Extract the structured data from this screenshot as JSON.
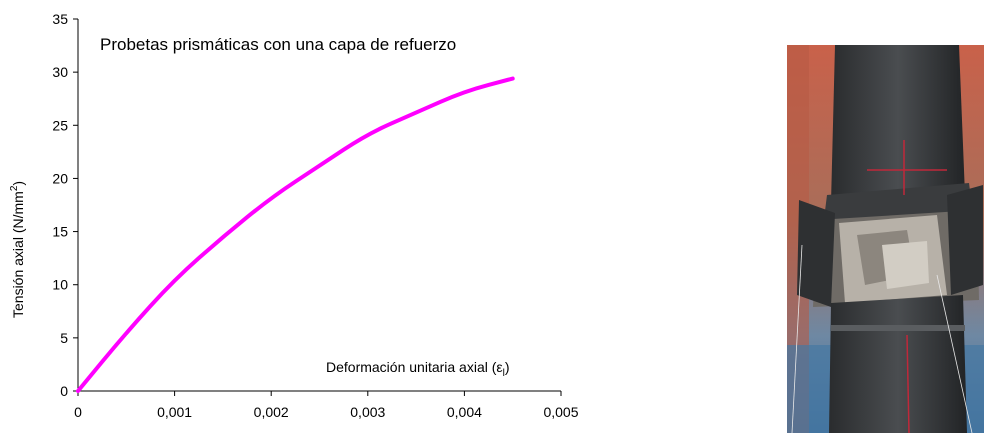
{
  "chart_data": {
    "type": "line",
    "title": "Probetas prismáticas con una capa de refuerzo",
    "xlabel": "Deformación unitaria axial (ε",
    "xlabel_sub": "l",
    "xlabel_close": ")",
    "ylabel": "Tensión axial (N/mm",
    "ylabel_sup": "2",
    "ylabel_close": ")",
    "xlim": [
      0,
      0.005
    ],
    "ylim": [
      0,
      35
    ],
    "x_ticks": [
      "0",
      "0,001",
      "0,002",
      "0,003",
      "0,004",
      "0,005"
    ],
    "y_ticks": [
      "0",
      "5",
      "10",
      "15",
      "20",
      "25",
      "30",
      "35"
    ],
    "grid": false,
    "series": [
      {
        "color": "#ff00ff",
        "x": [
          0,
          0.0005,
          0.001,
          0.0015,
          0.002,
          0.0025,
          0.003,
          0.0035,
          0.004,
          0.0045
        ],
        "y": [
          0,
          5.5,
          10.5,
          14.5,
          18.2,
          21.2,
          24.2,
          26.2,
          28.2,
          29.4
        ]
      }
    ]
  },
  "photo": {
    "description_icon": "specimen-photo-icon"
  }
}
